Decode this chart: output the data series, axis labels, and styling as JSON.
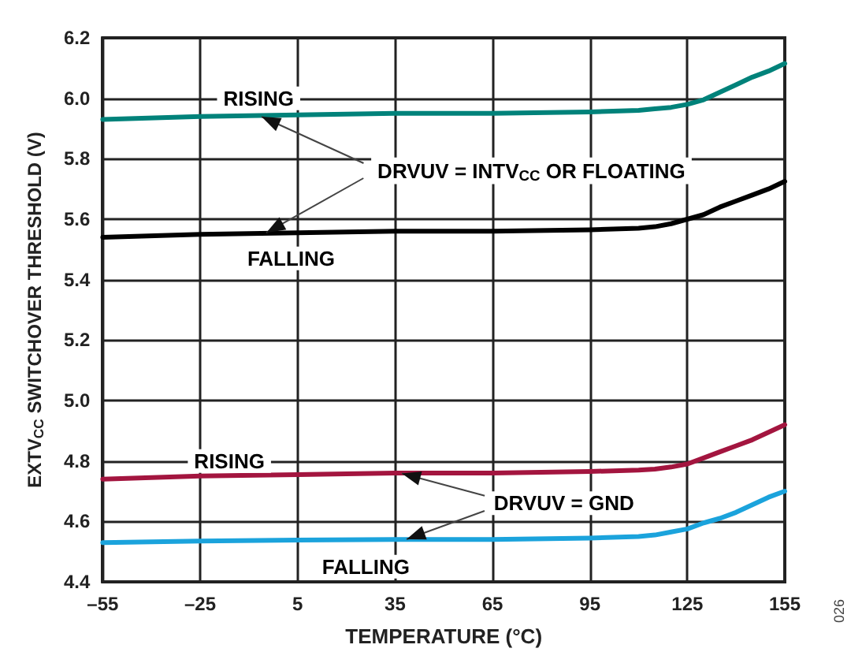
{
  "chart_data": {
    "type": "line",
    "xlabel": "TEMPERATURE (°C)",
    "ylabel": "EXTV$_{CC}$ SWITCHOVER THRESHOLD (V)",
    "x": [
      -55,
      -25,
      5,
      35,
      65,
      95,
      110,
      115,
      120,
      125,
      130,
      135,
      140,
      145,
      150,
      155
    ],
    "series": [
      {
        "color": "#00827a",
        "values": [
          5.93,
          5.94,
          5.945,
          5.95,
          5.95,
          5.955,
          5.96,
          5.965,
          5.97,
          5.98,
          5.995,
          6.02,
          6.045,
          6.07,
          6.09,
          6.115
        ]
      },
      {
        "color": "#000000",
        "values": [
          5.54,
          5.55,
          5.555,
          5.56,
          5.56,
          5.565,
          5.57,
          5.575,
          5.585,
          5.6,
          5.615,
          5.64,
          5.66,
          5.68,
          5.7,
          5.725
        ]
      },
      {
        "color": "#a3153f",
        "values": [
          4.74,
          4.75,
          4.755,
          4.76,
          4.76,
          4.765,
          4.77,
          4.773,
          4.78,
          4.79,
          4.81,
          4.83,
          4.85,
          4.87,
          4.895,
          4.92
        ]
      },
      {
        "color": "#1ba3dc",
        "values": [
          4.53,
          4.535,
          4.538,
          4.54,
          4.54,
          4.545,
          4.55,
          4.555,
          4.565,
          4.575,
          4.595,
          4.61,
          4.63,
          4.655,
          4.68,
          4.7
        ]
      }
    ],
    "xlim": [
      -55,
      155
    ],
    "xticks": [
      {
        "value": -55,
        "label": "–55"
      },
      {
        "value": -25,
        "label": "–25"
      },
      5,
      35,
      65,
      95,
      125,
      155
    ],
    "ylim": [
      4.4,
      6.2
    ],
    "yticks": [
      4.4,
      4.6,
      4.8,
      {
        "value": 5,
        "label": "5.0"
      },
      5.2,
      5.4,
      5.6,
      5.8,
      {
        "value": 6,
        "label": "6.0"
      },
      6.2
    ],
    "grid": true,
    "marker": "none",
    "line_style": "solid",
    "annotations": [
      "RISING",
      "FALLING",
      {
        "text": "DRVUV = INTV$_{CC}$ OR FLOATING",
        "x": -6,
        "y": 5.94
      },
      "RISING",
      {
        "text": "DRVUV = GND",
        "x": 37,
        "y": 4.76
      },
      "FALLING",
      "026"
    ]
  }
}
